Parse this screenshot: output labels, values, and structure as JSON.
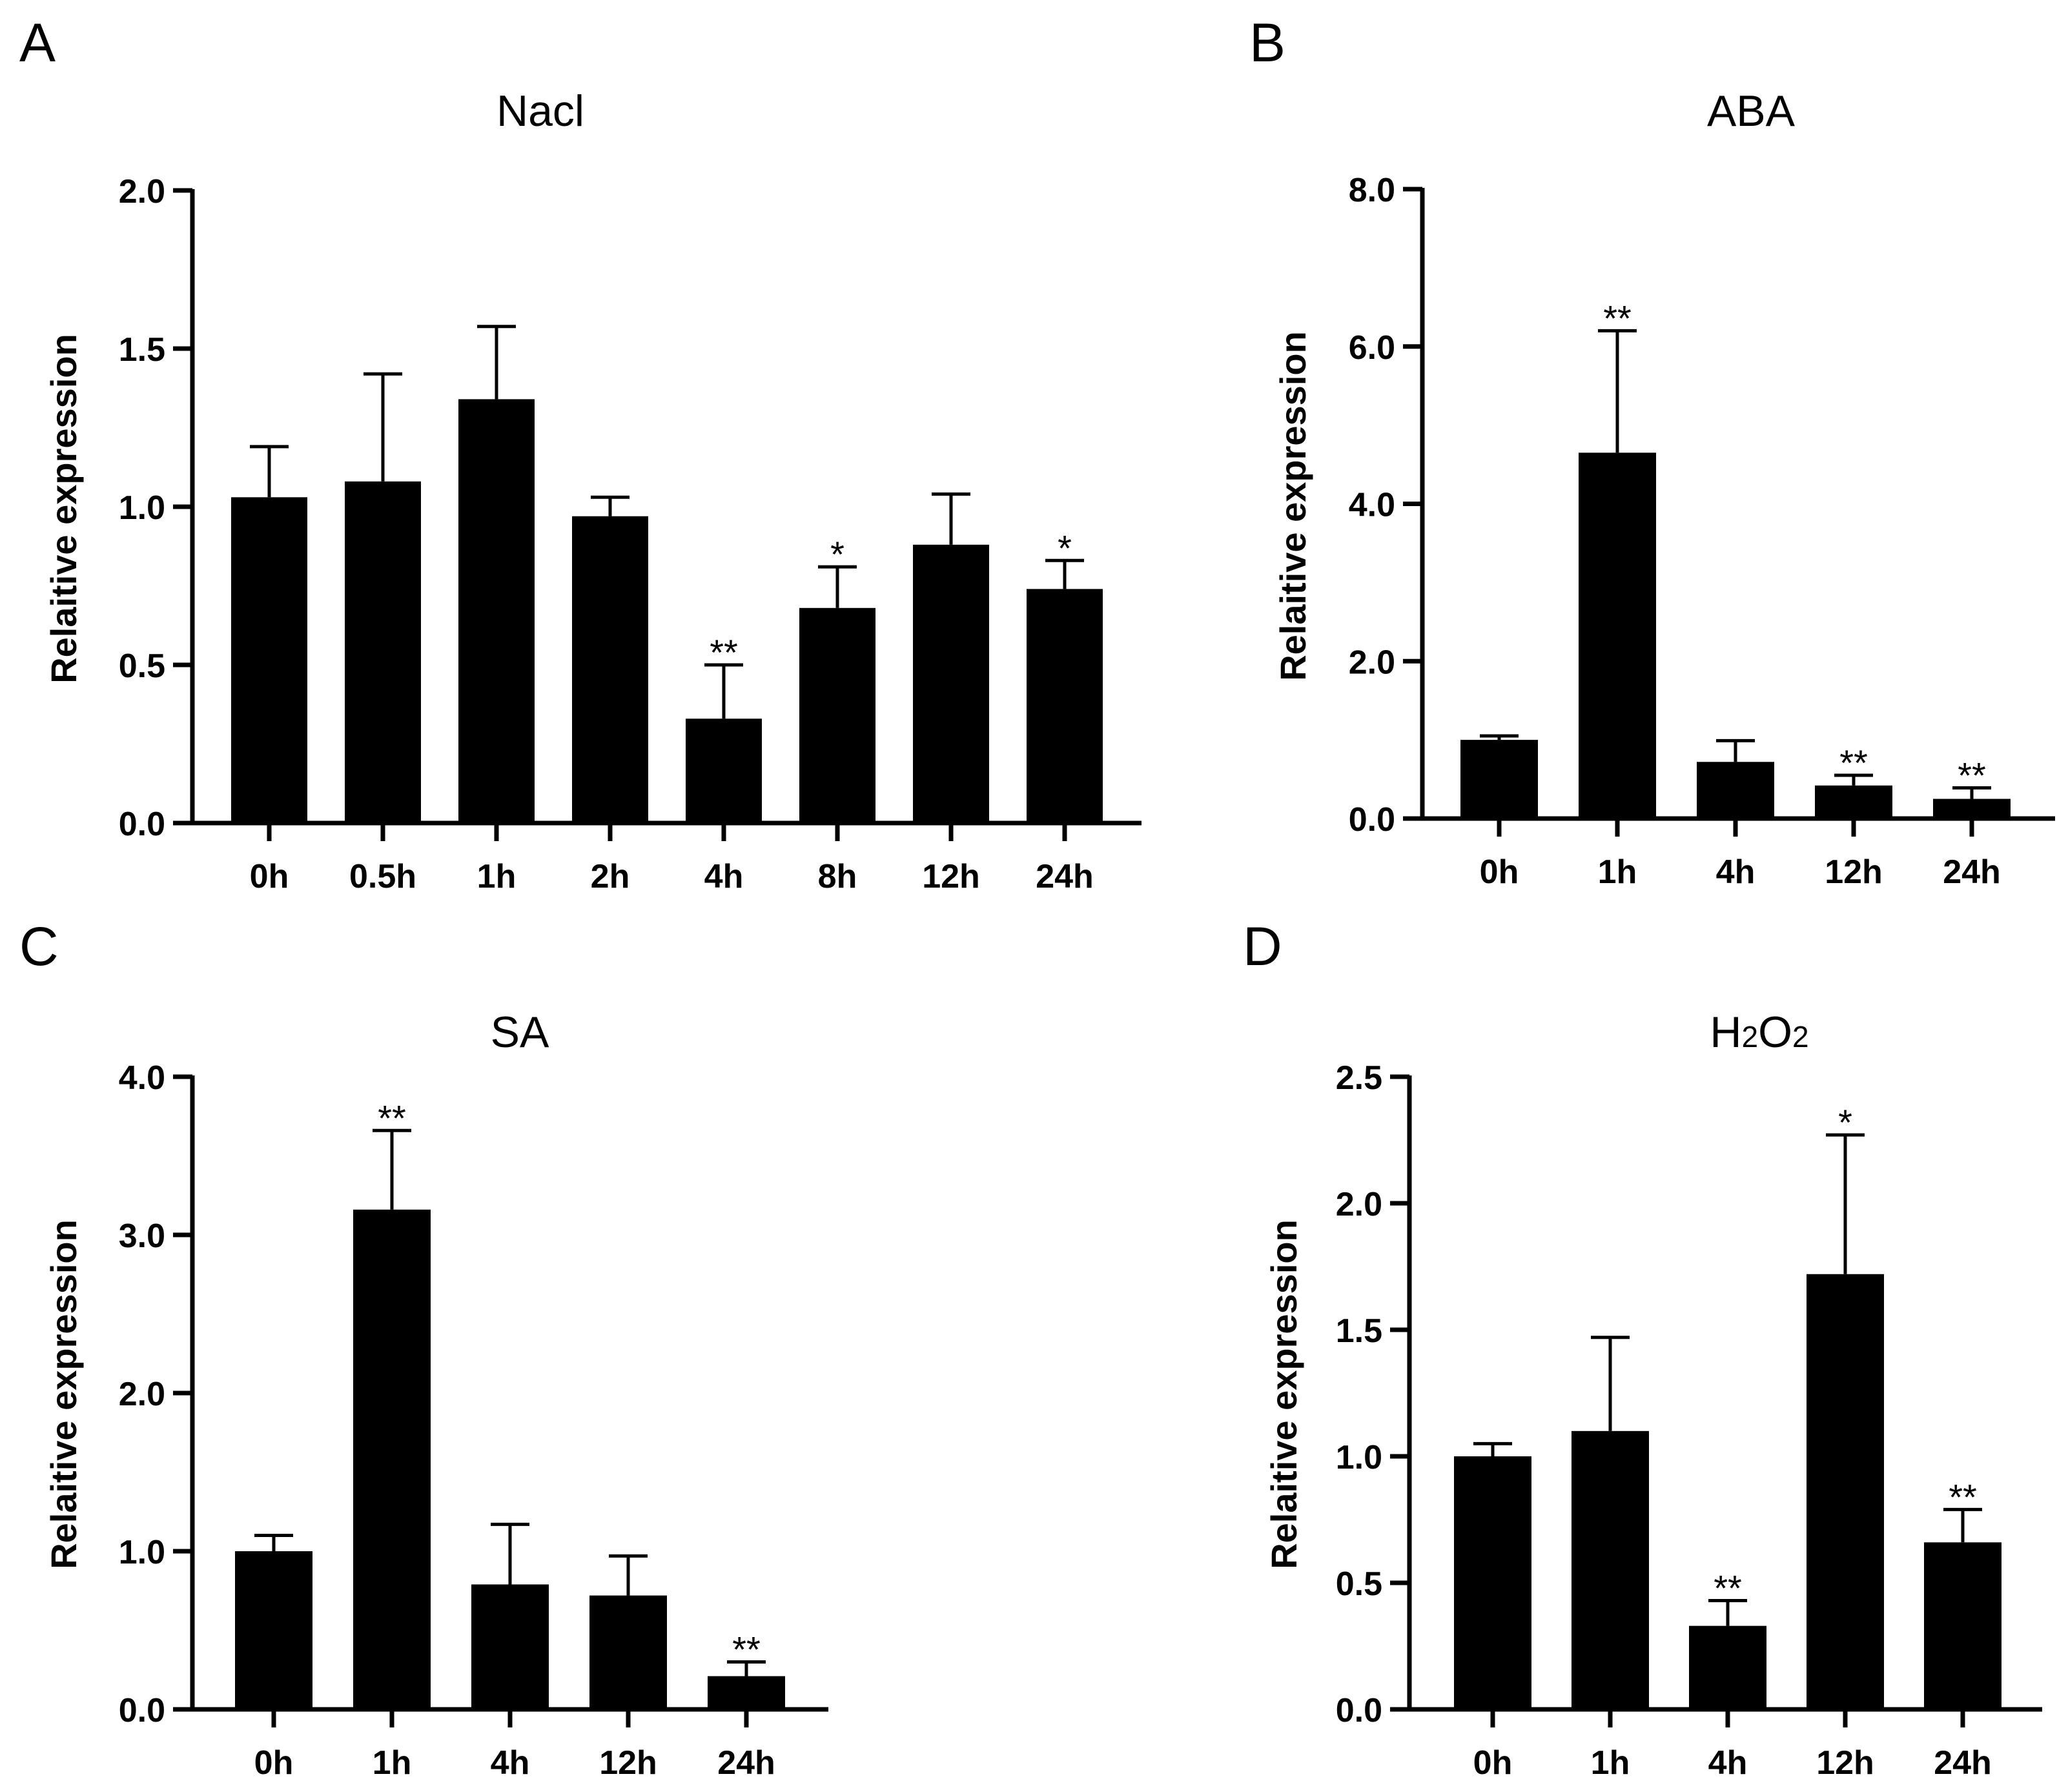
{
  "chart_data": [
    {
      "panel": "A",
      "type": "bar",
      "title": "Nacl",
      "ylabel": "Relaitive expression",
      "xlabel": "",
      "categories": [
        "0h",
        "0.5h",
        "1h",
        "2h",
        "4h",
        "8h",
        "12h",
        "24h"
      ],
      "values": [
        1.03,
        1.08,
        1.34,
        0.97,
        0.33,
        0.68,
        0.88,
        0.74
      ],
      "errors": [
        0.16,
        0.34,
        0.23,
        0.06,
        0.17,
        0.13,
        0.16,
        0.09
      ],
      "significance": [
        "",
        "",
        "",
        "",
        "**",
        "*",
        "",
        "*"
      ],
      "ylim": [
        0,
        2.0
      ],
      "yticks": [
        "0.0",
        "0.5",
        "1.0",
        "1.5",
        "2.0"
      ],
      "grid": false
    },
    {
      "panel": "B",
      "type": "bar",
      "title": "ABA",
      "ylabel": "Relaitive expression",
      "xlabel": "",
      "categories": [
        "0h",
        "1h",
        "4h",
        "12h",
        "24h"
      ],
      "values": [
        1.0,
        4.65,
        0.72,
        0.42,
        0.25
      ],
      "errors": [
        0.05,
        1.55,
        0.27,
        0.13,
        0.14
      ],
      "significance": [
        "",
        "**",
        "",
        "**",
        "**"
      ],
      "ylim": [
        0,
        8.0
      ],
      "yticks": [
        "0.0",
        "2.0",
        "4.0",
        "6.0",
        "8.0"
      ],
      "grid": false
    },
    {
      "panel": "C",
      "type": "bar",
      "title": "SA",
      "ylabel": "Relaitive expression",
      "xlabel": "",
      "categories": [
        "0h",
        "1h",
        "4h",
        "12h",
        "24h"
      ],
      "values": [
        1.0,
        3.16,
        0.79,
        0.72,
        0.21
      ],
      "errors": [
        0.1,
        0.5,
        0.38,
        0.25,
        0.09
      ],
      "significance": [
        "",
        "**",
        "",
        "",
        "**"
      ],
      "ylim": [
        0,
        4.0
      ],
      "yticks": [
        "0.0",
        "1.0",
        "2.0",
        "3.0",
        "4.0"
      ],
      "grid": false
    },
    {
      "panel": "D",
      "type": "bar",
      "title": "H2O2",
      "title_parts": [
        "H",
        "2",
        "O",
        "2"
      ],
      "ylabel": "Relaitive expression",
      "xlabel": "",
      "categories": [
        "0h",
        "1h",
        "4h",
        "12h",
        "24h"
      ],
      "values": [
        1.0,
        1.1,
        0.33,
        1.72,
        0.66
      ],
      "errors": [
        0.05,
        0.37,
        0.1,
        0.55,
        0.13
      ],
      "significance": [
        "",
        "",
        "**",
        "*",
        "**"
      ],
      "ylim": [
        0,
        2.5
      ],
      "yticks": [
        "0.0",
        "0.5",
        "1.0",
        "1.5",
        "2.0",
        "2.5"
      ],
      "grid": false
    }
  ]
}
